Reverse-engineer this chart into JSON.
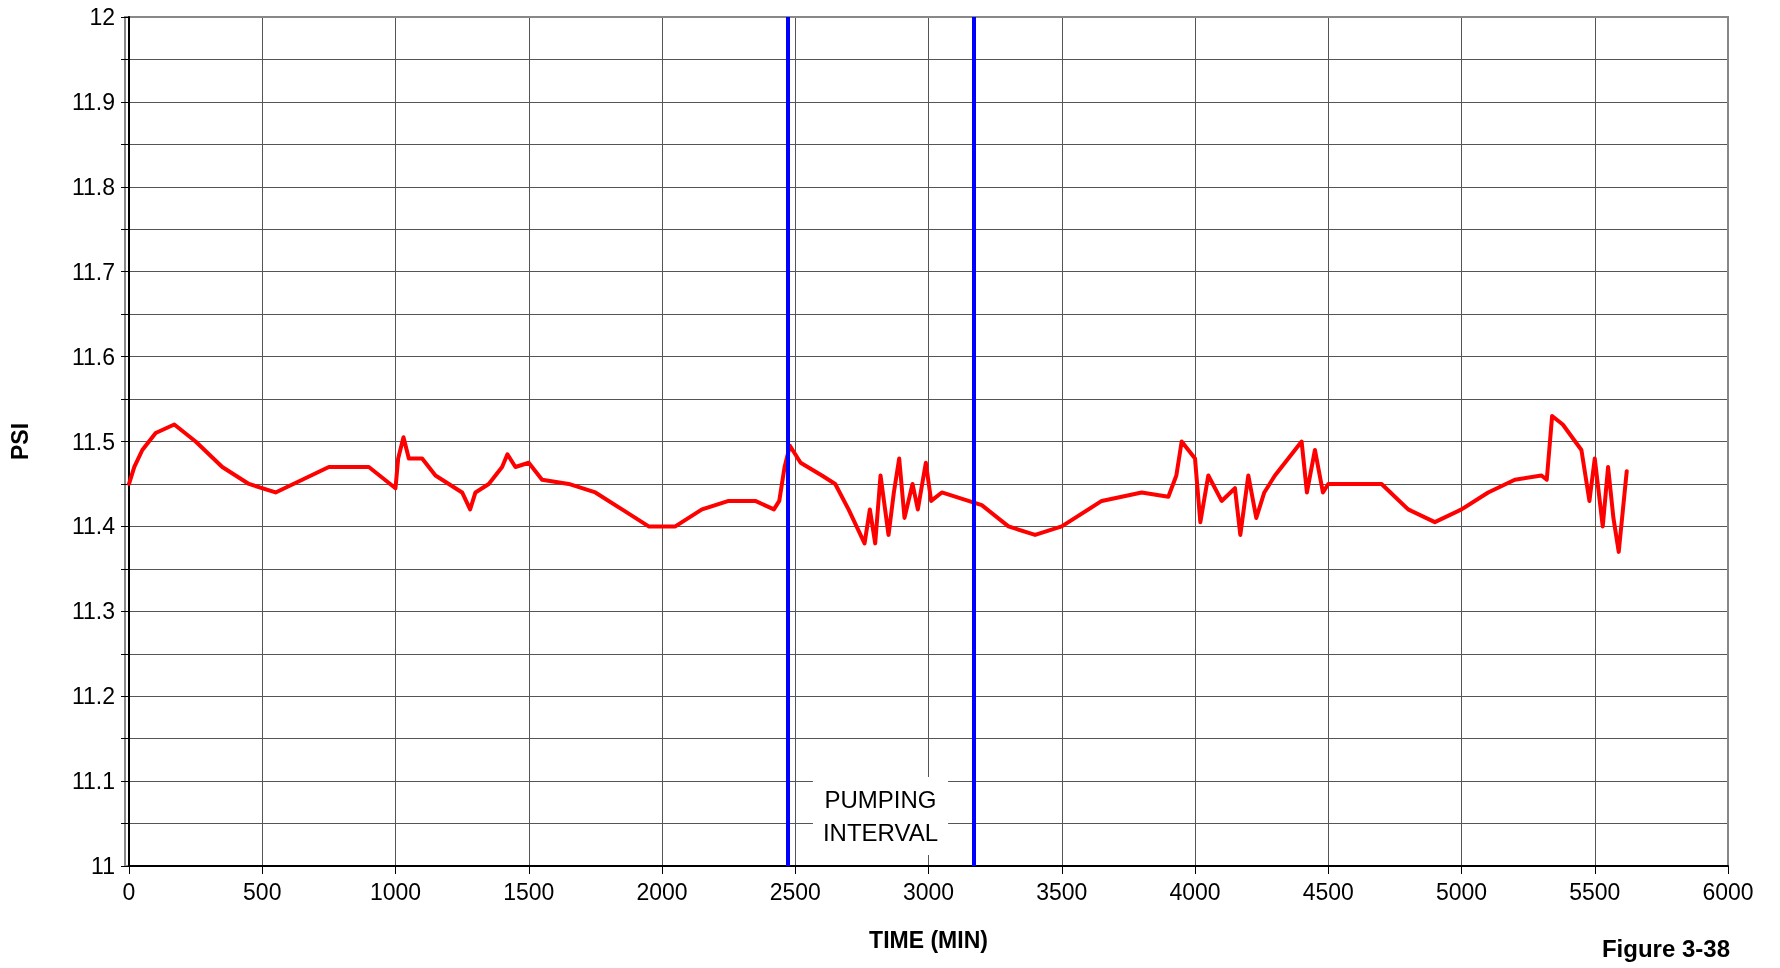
{
  "chart_data": {
    "type": "line",
    "xlabel": "TIME (MIN)",
    "ylabel": "PSI",
    "x": [
      0,
      20,
      50,
      100,
      170,
      250,
      350,
      450,
      550,
      650,
      750,
      900,
      980,
      1000,
      1010,
      1030,
      1050,
      1100,
      1150,
      1200,
      1250,
      1280,
      1300,
      1350,
      1400,
      1420,
      1450,
      1500,
      1550,
      1650,
      1750,
      1850,
      1950,
      2050,
      2150,
      2250,
      2350,
      2420,
      2440,
      2460,
      2480,
      2520,
      2600,
      2650,
      2700,
      2730,
      2760,
      2780,
      2800,
      2820,
      2850,
      2870,
      2890,
      2910,
      2940,
      2960,
      2990,
      3010,
      3050,
      3100,
      3200,
      3300,
      3400,
      3500,
      3650,
      3800,
      3900,
      3930,
      3950,
      4000,
      4020,
      4050,
      4100,
      4150,
      4170,
      4200,
      4230,
      4260,
      4300,
      4350,
      4400,
      4420,
      4450,
      4480,
      4500,
      4600,
      4700,
      4800,
      4900,
      5000,
      5100,
      5200,
      5300,
      5320,
      5340,
      5380,
      5450,
      5480,
      5500,
      5530,
      5550,
      5570,
      5590,
      5620
    ],
    "series": [
      {
        "color": "#ff0000",
        "values": [
          11.45,
          11.47,
          11.49,
          11.51,
          11.52,
          11.5,
          11.47,
          11.45,
          11.44,
          11.455,
          11.47,
          11.47,
          11.45,
          11.445,
          11.48,
          11.505,
          11.48,
          11.48,
          11.46,
          11.45,
          11.44,
          11.42,
          11.44,
          11.45,
          11.47,
          11.485,
          11.47,
          11.475,
          11.455,
          11.45,
          11.44,
          11.42,
          11.4,
          11.4,
          11.42,
          11.43,
          11.43,
          11.42,
          11.43,
          11.47,
          11.495,
          11.475,
          11.46,
          11.45,
          11.42,
          11.4,
          11.38,
          11.42,
          11.38,
          11.46,
          11.39,
          11.44,
          11.48,
          11.41,
          11.45,
          11.42,
          11.475,
          11.43,
          11.44,
          11.435,
          11.425,
          11.4,
          11.39,
          11.4,
          11.43,
          11.44,
          11.435,
          11.46,
          11.5,
          11.48,
          11.405,
          11.46,
          11.43,
          11.445,
          11.39,
          11.46,
          11.41,
          11.44,
          11.46,
          11.48,
          11.5,
          11.44,
          11.49,
          11.44,
          11.45,
          11.45,
          11.45,
          11.42,
          11.405,
          11.42,
          11.44,
          11.455,
          11.46,
          11.455,
          11.53,
          11.52,
          11.49,
          11.43,
          11.48,
          11.4,
          11.47,
          11.41,
          11.37,
          11.465
        ]
      }
    ],
    "xlim": [
      0,
      6000
    ],
    "xticks": [
      0,
      500,
      1000,
      1500,
      2000,
      2500,
      3000,
      3500,
      4000,
      4500,
      5000,
      5500,
      6000
    ],
    "ylim": [
      11,
      12
    ],
    "yticks": [
      11,
      {
        "value": 11.05,
        "label": null
      },
      11.1,
      {
        "value": 11.15,
        "label": null
      },
      11.2,
      {
        "value": 11.25,
        "label": null
      },
      11.3,
      {
        "value": 11.35,
        "label": null
      },
      11.4,
      {
        "value": 11.45,
        "label": null
      },
      11.5,
      {
        "value": 11.55,
        "label": null
      },
      11.6,
      {
        "value": 11.65,
        "label": null
      },
      11.7,
      {
        "value": 11.75,
        "label": null
      },
      11.8,
      {
        "value": 11.85,
        "label": null
      },
      11.9,
      {
        "value": 11.95,
        "label": null
      },
      12
    ],
    "grid": true,
    "marker": "none",
    "line_style": "solid",
    "ref_lines": [
      {
        "axis": "x",
        "value": 2470,
        "color": "#0000ff"
      },
      {
        "axis": "x",
        "value": 3170,
        "color": "#0000ff"
      }
    ],
    "annotations": [
      "PUMPING\nINTERVAL",
      "Figure 3-38"
    ]
  }
}
